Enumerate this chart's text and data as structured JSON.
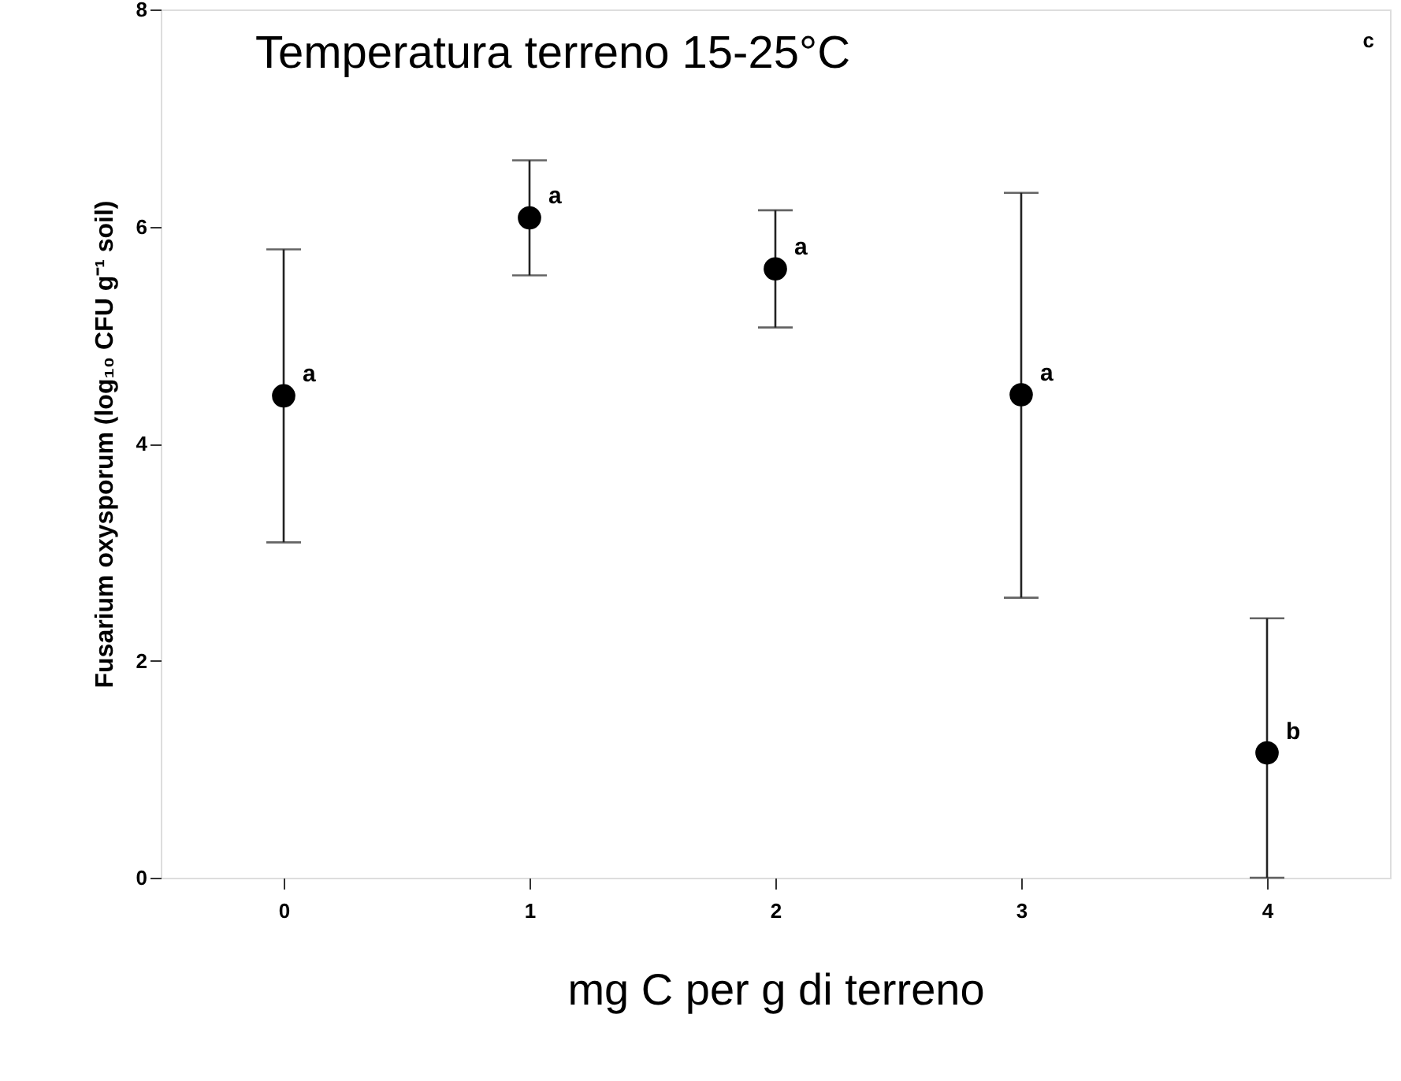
{
  "chart_data": {
    "type": "scatter",
    "title": "Temperatura terreno 15-25°C",
    "xlabel": "mg C per g di terreno",
    "ylabel": "Fusarium oxysporum (log₁₀ CFU g⁻¹ soil)",
    "x": [
      0,
      1,
      2,
      3,
      4
    ],
    "values": [
      4.44,
      6.08,
      5.61,
      4.45,
      1.15
    ],
    "errors": [
      [
        3.09,
        5.79
      ],
      [
        5.55,
        6.61
      ],
      [
        5.07,
        6.15
      ],
      [
        2.58,
        6.31
      ],
      [
        0,
        2.39
      ]
    ],
    "color": "#000000",
    "marker": "circle",
    "xlim": [
      -0.5,
      4.5
    ],
    "xticks": [
      0,
      1,
      2,
      3,
      4
    ],
    "ylim": [
      0,
      8
    ],
    "yticks": [
      0,
      2,
      4,
      6,
      8
    ],
    "grid": false,
    "annotations": [
      {
        "text": "a",
        "x": 0,
        "y": 4.44
      },
      {
        "text": "a",
        "x": 1,
        "y": 6.08
      },
      {
        "text": "a",
        "x": 2,
        "y": 5.61
      },
      {
        "text": "a",
        "x": 3,
        "y": 4.45
      },
      {
        "text": "b",
        "x": 4,
        "y": 1.15
      },
      "c"
    ]
  }
}
